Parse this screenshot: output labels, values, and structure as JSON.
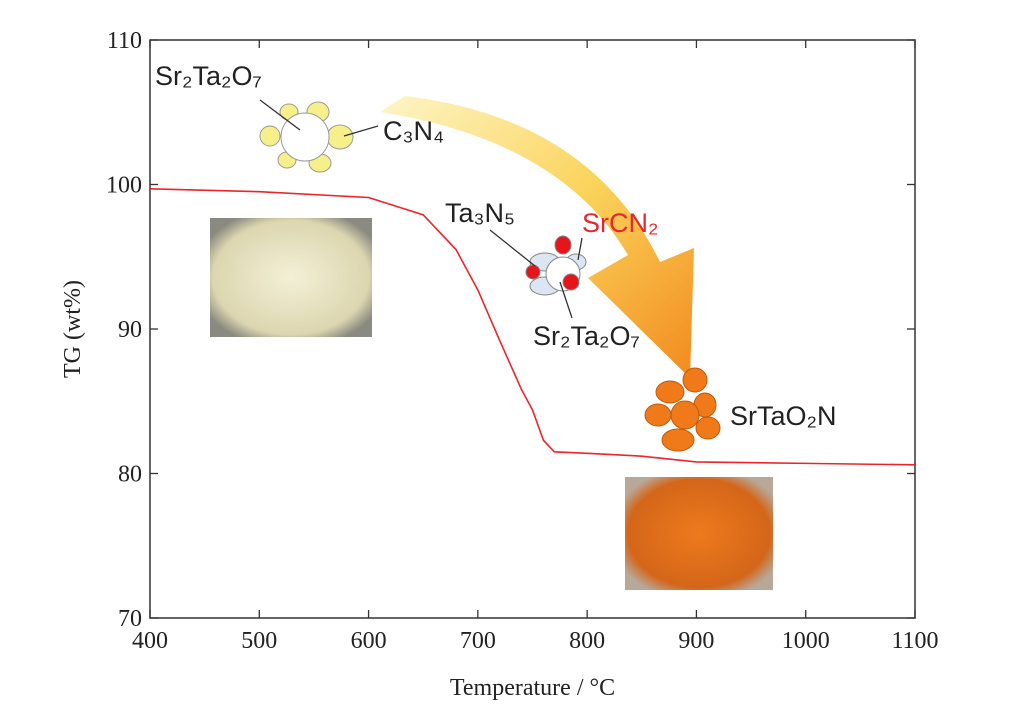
{
  "chart_data": {
    "type": "line",
    "xlabel": "Temperature / °C",
    "ylabel": "TG (wt%)",
    "x": [
      400,
      500,
      600,
      650,
      680,
      700,
      720,
      740,
      750,
      760,
      770,
      800,
      850,
      900,
      1000,
      1100
    ],
    "series": [
      {
        "color": "#e8262b",
        "values": [
          99.7,
          99.5,
          99.1,
          97.9,
          95.5,
          92.7,
          89.2,
          85.8,
          84.4,
          82.3,
          81.5,
          81.4,
          81.2,
          80.8,
          80.7,
          80.6
        ]
      }
    ],
    "xlim": [
      400,
      1100
    ],
    "xticks": [
      400,
      500,
      600,
      700,
      800,
      900,
      1000,
      1100
    ],
    "ylim": [
      70,
      110
    ],
    "yticks": [
      70,
      80,
      90,
      100,
      110
    ],
    "annotations": [
      {
        "text": "Sr₂Ta₂O₇",
        "color": "#222222"
      },
      {
        "text": "C₃N₄",
        "color": "#222222"
      },
      {
        "text": "Ta₃N₅",
        "color": "#222222"
      },
      {
        "text": "SrCN₂",
        "color": "#e8262b"
      },
      {
        "text": "Sr₂Ta₂O₇",
        "color": "#222222"
      },
      {
        "text": "SrTaO₂N",
        "color": "#222222"
      }
    ]
  }
}
